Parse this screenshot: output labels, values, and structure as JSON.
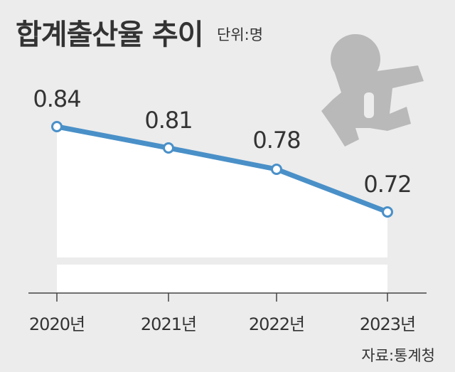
{
  "header": {
    "title": "합계출산율 추이",
    "unit": "단위:명"
  },
  "source": "자료:통계청",
  "colors": {
    "background": "#ececec",
    "line": "#4a90c8",
    "area": "#ffffff",
    "text": "#333333",
    "axis": "#444444",
    "icon": "#b9b9b9"
  },
  "icon": "baby-icon",
  "chart_data": {
    "type": "line",
    "title": "합계출산율 추이",
    "categories": [
      "2020년",
      "2021년",
      "2022년",
      "2023년"
    ],
    "values": [
      0.84,
      0.81,
      0.78,
      0.72
    ],
    "data_labels": [
      "0.84",
      "0.81",
      "0.78",
      "0.72"
    ],
    "ylabel": "단위:명",
    "xlabel": "",
    "ylim": [
      0.7,
      0.85
    ],
    "grid": false,
    "legend": "none"
  }
}
